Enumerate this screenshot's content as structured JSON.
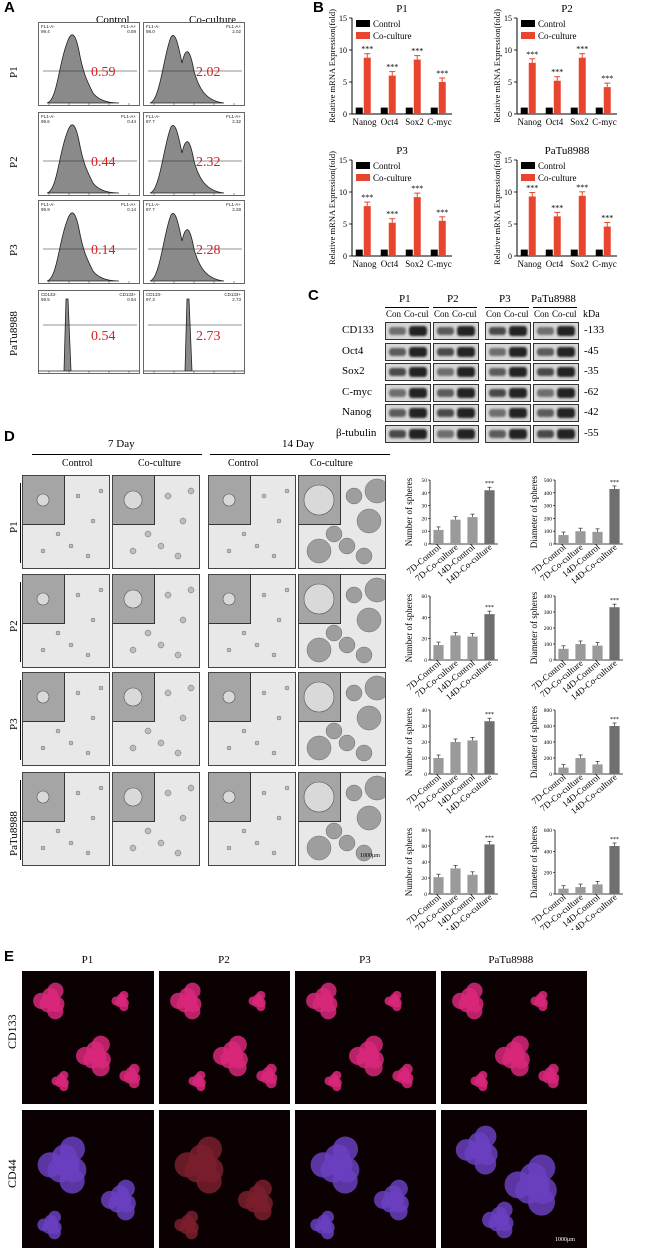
{
  "panel_labels": {
    "a": "A",
    "b": "B",
    "c": "C",
    "d": "D",
    "e": "E"
  },
  "panelA": {
    "col_control": "Control",
    "col_coculture": "Co-culture",
    "rows": [
      {
        "label": "P1",
        "control_pct": "0.59",
        "coculture_pct": "2.02",
        "ctrl_left": "FL1-A-\n99.4",
        "ctrl_right": "FL1-A+\n0.59",
        "co_left": "FL1-A-\n98.0",
        "co_right": "FL1-A+\n2.02"
      },
      {
        "label": "P2",
        "control_pct": "0.44",
        "coculture_pct": "2.32",
        "ctrl_left": "FL1-A-\n99.6",
        "ctrl_right": "FL1-A+\n0.44",
        "co_left": "FL1-A-\n97.7",
        "co_right": "FL1-A+\n2.32"
      },
      {
        "label": "P3",
        "control_pct": "0.14",
        "coculture_pct": "2.28",
        "ctrl_left": "FL1-A-\n99.9",
        "ctrl_right": "FL1-A+\n0.14",
        "co_left": "FL1-A-\n97.7",
        "co_right": "FL1-A+\n2.28"
      },
      {
        "label": "PaTu8988",
        "control_pct": "0.54",
        "coculture_pct": "2.73",
        "ctrl_left": "CD133-\n99.5",
        "ctrl_right": "CD133+\n0.54",
        "co_left": "CD133-\n97.3",
        "co_right": "CD133+\n2.73"
      }
    ]
  },
  "chart_data": [
    {
      "type": "bar",
      "title": "P1",
      "ylabel": "Relative mRNA Expression(fold)",
      "categories": [
        "Nanog",
        "Oct4",
        "Sox2",
        "C-myc"
      ],
      "ylim": [
        0,
        15
      ],
      "yticks": [
        0,
        5,
        10,
        15
      ],
      "series": [
        {
          "name": "Control",
          "values": [
            1,
            1,
            1,
            1
          ]
        },
        {
          "name": "Co-culture",
          "values": [
            8.8,
            6.0,
            8.5,
            5.0
          ]
        }
      ],
      "annotations": [
        "***",
        "***",
        "***",
        "***"
      ],
      "legend": "top-left"
    },
    {
      "type": "bar",
      "title": "P2",
      "ylabel": "Relative mRNA Expression(fold)",
      "categories": [
        "Nanog",
        "Oct4",
        "Sox2",
        "C-myc"
      ],
      "ylim": [
        0,
        15
      ],
      "yticks": [
        0,
        5,
        10,
        15
      ],
      "series": [
        {
          "name": "Control",
          "values": [
            1,
            1,
            1,
            1
          ]
        },
        {
          "name": "Co-culture",
          "values": [
            8.0,
            5.2,
            8.8,
            4.2
          ]
        }
      ],
      "annotations": [
        "***",
        "***",
        "***",
        "***"
      ],
      "legend": "top-left"
    },
    {
      "type": "bar",
      "title": "P3",
      "ylabel": "Relative mRNA Expression(fold)",
      "categories": [
        "Nanog",
        "Oct4",
        "Sox2",
        "C-myc"
      ],
      "ylim": [
        0,
        15
      ],
      "yticks": [
        0,
        5,
        10,
        15
      ],
      "series": [
        {
          "name": "Control",
          "values": [
            1,
            1,
            1,
            1
          ]
        },
        {
          "name": "Co-culture",
          "values": [
            7.8,
            5.2,
            9.2,
            5.5
          ]
        }
      ],
      "annotations": [
        "***",
        "***",
        "***",
        "***"
      ],
      "legend": "top-left"
    },
    {
      "type": "bar",
      "title": "PaTu8988",
      "ylabel": "Relative mRNA Expression(fold)",
      "categories": [
        "Nanog",
        "Oct4",
        "Sox2",
        "C-myc"
      ],
      "ylim": [
        0,
        15
      ],
      "yticks": [
        0,
        5,
        10,
        15
      ],
      "series": [
        {
          "name": "Control",
          "values": [
            1,
            1,
            1,
            1
          ]
        },
        {
          "name": "Co-culture",
          "values": [
            9.3,
            6.2,
            9.4,
            4.6
          ]
        }
      ],
      "annotations": [
        "***",
        "***",
        "***",
        "***"
      ],
      "legend": "top-left"
    },
    {
      "type": "bar",
      "ylabel": "Number of spheres",
      "categories": [
        "7D-Control",
        "7D-Co-culture",
        "14D-Control",
        "14D-Co-culture"
      ],
      "ylim": [
        0,
        50
      ],
      "yticks": [
        0,
        10,
        20,
        30,
        40,
        50
      ],
      "values": [
        11,
        19,
        21,
        42
      ],
      "annotations": [
        "",
        "",
        "",
        "***"
      ]
    },
    {
      "type": "bar",
      "ylabel": "Diameter of spheres",
      "categories": [
        "7D-Control",
        "7D-Co-culture",
        "14D-Control",
        "14D-Co-culture"
      ],
      "ylim": [
        0,
        500
      ],
      "yticks": [
        0,
        100,
        200,
        300,
        400,
        500
      ],
      "values": [
        70,
        100,
        95,
        430
      ],
      "annotations": [
        "",
        "",
        "",
        "***"
      ]
    },
    {
      "type": "bar",
      "ylabel": "Number of spheres",
      "categories": [
        "7D-Control",
        "7D-Co-culture",
        "14D-Control",
        "14D-Co-culture"
      ],
      "ylim": [
        0,
        60
      ],
      "yticks": [
        0,
        20,
        40,
        60
      ],
      "values": [
        14,
        23,
        22,
        43
      ],
      "annotations": [
        "",
        "",
        "",
        "***"
      ]
    },
    {
      "type": "bar",
      "ylabel": "Diameter of spheres",
      "categories": [
        "7D-Control",
        "7D-Co-culture",
        "14D-Control",
        "14D-Co-culture"
      ],
      "ylim": [
        0,
        400
      ],
      "yticks": [
        0,
        100,
        200,
        300,
        400
      ],
      "values": [
        70,
        100,
        90,
        330
      ],
      "annotations": [
        "",
        "",
        "",
        "***"
      ]
    },
    {
      "type": "bar",
      "ylabel": "Number of spheres",
      "categories": [
        "7D-Control",
        "7D-Co-culture",
        "14D-Control",
        "14D-Co-culture"
      ],
      "ylim": [
        0,
        40
      ],
      "yticks": [
        0,
        10,
        20,
        30,
        40
      ],
      "values": [
        10,
        20,
        21,
        33
      ],
      "annotations": [
        "",
        "",
        "",
        "***"
      ]
    },
    {
      "type": "bar",
      "ylabel": "Diameter of spheres",
      "categories": [
        "7D-Control",
        "7D-Co-culture",
        "14D-Control",
        "14D-Co-culture"
      ],
      "ylim": [
        0,
        800
      ],
      "yticks": [
        0,
        200,
        400,
        600,
        800
      ],
      "values": [
        80,
        200,
        120,
        600
      ],
      "annotations": [
        "",
        "",
        "",
        "***"
      ]
    },
    {
      "type": "bar",
      "ylabel": "Number of spheres",
      "categories": [
        "7D-Control",
        "7D-Co-culture",
        "14D-Control",
        "14D-Co-culture"
      ],
      "ylim": [
        0,
        80
      ],
      "yticks": [
        0,
        20,
        40,
        60,
        80
      ],
      "values": [
        21,
        32,
        24,
        62
      ],
      "annotations": [
        "",
        "",
        "",
        "***"
      ]
    },
    {
      "type": "bar",
      "ylabel": "Diameter of spheres",
      "categories": [
        "7D-Control",
        "7D-Co-culture",
        "14D-Control",
        "14D-Co-culture"
      ],
      "ylim": [
        0,
        600
      ],
      "yticks": [
        0,
        200,
        400,
        600
      ],
      "values": [
        50,
        65,
        90,
        450
      ],
      "annotations": [
        "",
        "",
        "",
        "***"
      ]
    }
  ],
  "panelC": {
    "groups": [
      "P1",
      "P2",
      "P3",
      "PaTu8988"
    ],
    "lanes": [
      "Con",
      "Co-cul"
    ],
    "kda_label": "kDa",
    "proteins": [
      {
        "name": "CD133",
        "kda": "-133"
      },
      {
        "name": "Oct4",
        "kda": "-45"
      },
      {
        "name": "Sox2",
        "kda": "-35"
      },
      {
        "name": "C-myc",
        "kda": "-62"
      },
      {
        "name": "Nanog",
        "kda": "-42"
      },
      {
        "name": "β-tubulin",
        "kda": "-55"
      }
    ]
  },
  "panelD": {
    "day7": "7 Day",
    "day14": "14 Day",
    "cols": [
      "Control",
      "Co-culture",
      "Control",
      "Co-culture"
    ],
    "rows": [
      "P1",
      "P2",
      "P3",
      "PaTu8988"
    ],
    "scale": "1000μm"
  },
  "panelE": {
    "cols": [
      "P1",
      "P2",
      "P3",
      "PaTu8988"
    ],
    "rows": [
      "CD133",
      "CD44"
    ],
    "scale": "1000μm"
  }
}
